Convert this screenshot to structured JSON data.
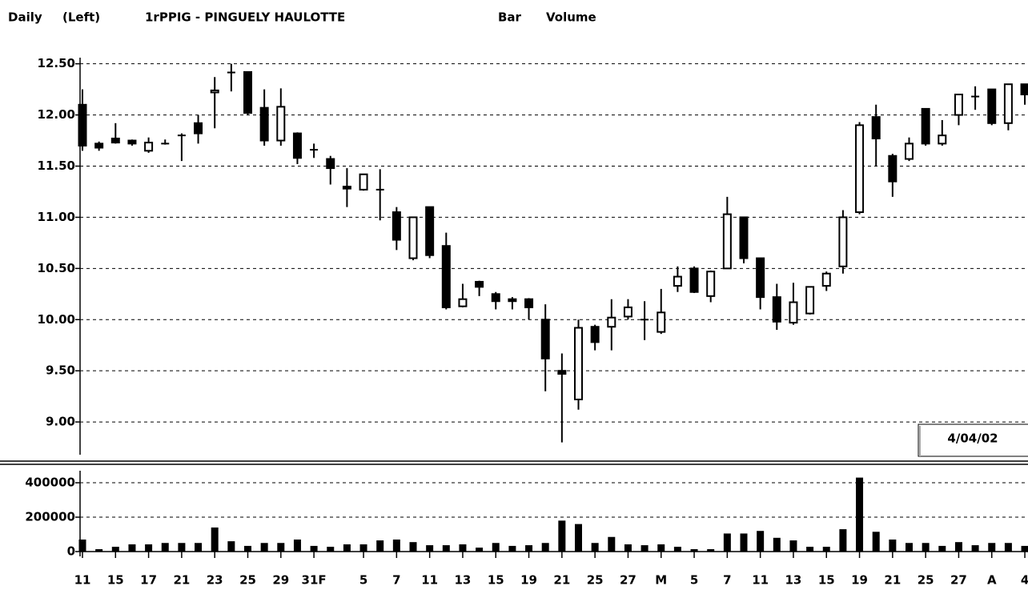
{
  "header": {
    "period": "Daily",
    "side": "(Left)",
    "title": "1rPPIG - PINGUELY HAULOTTE",
    "style": "Bar",
    "indicator": "Volume"
  },
  "chart_data": [
    {
      "type": "candlestick",
      "date_label": "4/04/02",
      "categories": [
        "11",
        null,
        "15",
        null,
        "17",
        null,
        "21",
        null,
        "23",
        null,
        "25",
        null,
        "29",
        null,
        "31F",
        null,
        null,
        "5",
        null,
        "7",
        null,
        "11",
        null,
        "13",
        null,
        "15",
        null,
        "19",
        null,
        "21",
        null,
        "25",
        null,
        "27",
        null,
        "M",
        null,
        "5",
        null,
        "7",
        null,
        "11",
        null,
        "13",
        null,
        "15",
        null,
        "19",
        null,
        "21",
        null,
        "25",
        null,
        "27",
        null,
        "A",
        null,
        "4"
      ],
      "open": [
        12.1,
        11.72,
        11.77,
        11.75,
        11.65,
        11.72,
        11.8,
        11.92,
        12.22,
        12.41,
        12.42,
        12.07,
        11.75,
        11.82,
        11.66,
        11.57,
        11.3,
        11.27,
        11.27,
        11.05,
        10.6,
        11.1,
        10.72,
        10.13,
        10.37,
        10.25,
        10.2,
        10.2,
        10.0,
        9.5,
        9.22,
        9.93,
        9.93,
        10.03,
        10.0,
        9.88,
        10.33,
        10.5,
        10.23,
        10.5,
        11.0,
        10.6,
        10.22,
        9.97,
        10.06,
        10.33,
        10.52,
        11.05,
        11.98,
        11.6,
        11.57,
        12.06,
        11.72,
        12.0,
        12.18,
        12.25,
        11.92,
        12.3
      ],
      "high": [
        12.25,
        11.74,
        11.92,
        11.76,
        11.78,
        11.76,
        11.82,
        12.0,
        12.37,
        12.5,
        12.42,
        12.25,
        12.26,
        11.83,
        11.72,
        11.6,
        11.48,
        11.42,
        11.47,
        11.1,
        11.0,
        11.1,
        10.85,
        10.35,
        10.38,
        10.27,
        10.22,
        10.21,
        10.15,
        9.67,
        10.0,
        9.95,
        10.2,
        10.2,
        10.18,
        10.3,
        10.52,
        10.52,
        10.48,
        11.2,
        11.0,
        10.6,
        10.35,
        10.36,
        10.32,
        10.47,
        11.07,
        11.93,
        12.1,
        11.62,
        11.78,
        12.06,
        11.95,
        12.2,
        12.28,
        12.25,
        12.3,
        12.3
      ],
      "low": [
        11.65,
        11.65,
        11.72,
        11.7,
        11.63,
        11.71,
        11.55,
        11.72,
        11.87,
        12.23,
        12.0,
        11.7,
        11.7,
        11.52,
        11.58,
        11.32,
        11.1,
        11.26,
        10.97,
        10.68,
        10.58,
        10.6,
        10.1,
        10.12,
        10.23,
        10.1,
        10.1,
        10.0,
        9.3,
        8.8,
        9.12,
        9.7,
        9.7,
        10.0,
        9.8,
        9.86,
        10.27,
        10.26,
        10.17,
        10.5,
        10.55,
        10.1,
        9.9,
        9.95,
        10.05,
        10.28,
        10.45,
        11.03,
        11.5,
        11.2,
        11.55,
        11.7,
        11.7,
        11.9,
        12.05,
        11.9,
        11.85,
        12.1
      ],
      "close": [
        11.7,
        11.68,
        11.73,
        11.72,
        11.73,
        11.72,
        11.8,
        11.82,
        12.24,
        12.42,
        12.02,
        11.75,
        12.08,
        11.58,
        11.66,
        11.48,
        11.28,
        11.42,
        11.27,
        10.78,
        11.0,
        10.63,
        10.12,
        10.2,
        10.32,
        10.18,
        10.18,
        10.12,
        9.62,
        9.47,
        9.92,
        9.78,
        10.02,
        10.12,
        10.0,
        10.07,
        10.42,
        10.27,
        10.47,
        11.03,
        10.6,
        10.22,
        9.98,
        10.17,
        10.32,
        10.45,
        11.0,
        11.9,
        11.77,
        11.35,
        11.72,
        11.72,
        11.8,
        12.2,
        12.18,
        11.92,
        12.3,
        12.2
      ],
      "ylim": [
        8.68,
        12.56
      ],
      "yticks": [
        {
          "value": 9.0,
          "label": "9.00"
        },
        {
          "value": 9.5,
          "label": "9.50"
        },
        {
          "value": 10.0,
          "label": "10.00"
        },
        {
          "value": 10.5,
          "label": "10.50"
        },
        {
          "value": 11.0,
          "label": "11.00"
        },
        {
          "value": 11.5,
          "label": "11.50"
        },
        {
          "value": 12.0,
          "label": "12.00"
        },
        {
          "value": 12.5,
          "label": "12.50"
        }
      ],
      "grid": true,
      "color": "#000000"
    },
    {
      "type": "bar",
      "values": [
        70000,
        14000,
        28000,
        42000,
        42000,
        50000,
        50000,
        50000,
        140000,
        60000,
        33000,
        50000,
        50000,
        70000,
        33000,
        28000,
        42000,
        42000,
        65000,
        70000,
        55000,
        37000,
        37000,
        42000,
        23000,
        50000,
        33000,
        37000,
        50000,
        180000,
        160000,
        50000,
        85000,
        42000,
        37000,
        42000,
        28000,
        14000,
        14000,
        105000,
        105000,
        120000,
        80000,
        65000,
        28000,
        28000,
        130000,
        430000,
        115000,
        70000,
        50000,
        50000,
        33000,
        55000,
        37000,
        50000,
        50000,
        33000
      ],
      "ylim": [
        0,
        470000
      ],
      "yticks": [
        0,
        200000,
        400000
      ],
      "grid": true,
      "color": "#000000"
    }
  ]
}
